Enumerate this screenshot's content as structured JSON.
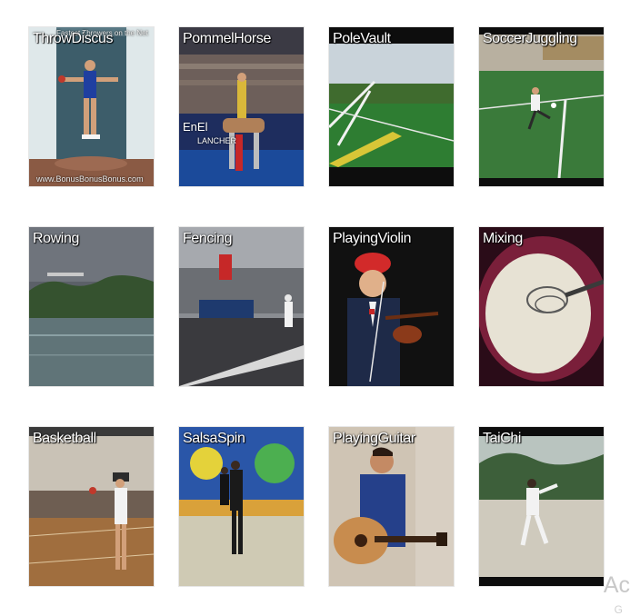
{
  "grid": {
    "tiles": [
      {
        "label": "ThrowDiscus",
        "top_text": "Fastest Throwers on the Net",
        "bottom_text": "www.BonusBonusBonus.com"
      },
      {
        "label": "PommelHorse",
        "banner_text": "EnEl",
        "banner_text2": "LANCHER"
      },
      {
        "label": "PoleVault"
      },
      {
        "label": "SoccerJuggling"
      },
      {
        "label": "Rowing"
      },
      {
        "label": "Fencing"
      },
      {
        "label": "PlayingViolin"
      },
      {
        "label": "Mixing"
      },
      {
        "label": "Basketball"
      },
      {
        "label": "SalsaSpin"
      },
      {
        "label": "PlayingGuitar"
      },
      {
        "label": "TaiChi"
      }
    ]
  },
  "watermark": {
    "text": "Ac",
    "subtext": "G"
  }
}
